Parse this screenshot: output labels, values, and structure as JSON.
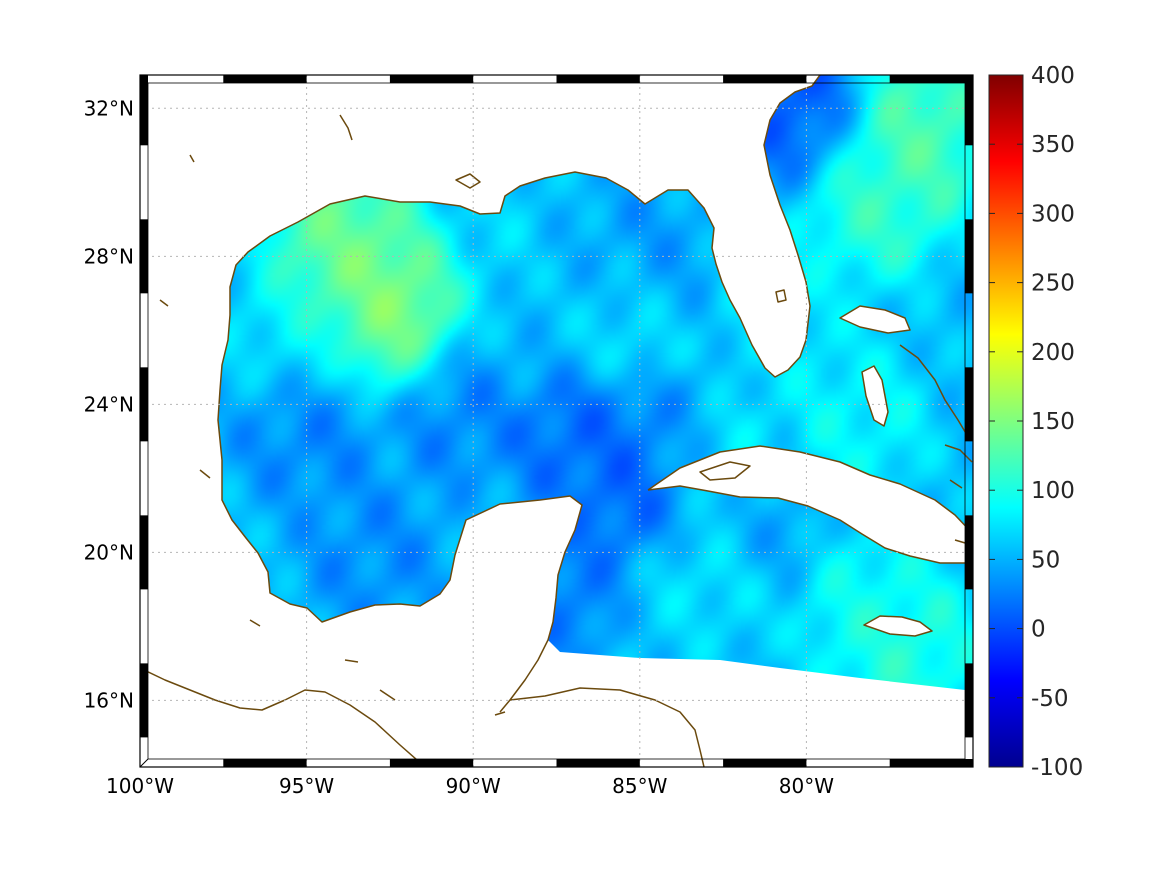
{
  "chart_data": {
    "type": "heatmap",
    "title": "",
    "xlabel": "",
    "ylabel": "",
    "map_extent": {
      "lon_range": [
        -100,
        -75
      ],
      "lat_range": [
        14.2,
        32.9
      ]
    },
    "x_ticks": [
      {
        "value": -100,
        "label": "100°W"
      },
      {
        "value": -95,
        "label": "95°W"
      },
      {
        "value": -90,
        "label": "90°W"
      },
      {
        "value": -85,
        "label": "85°W"
      },
      {
        "value": -80,
        "label": "80°W"
      }
    ],
    "y_ticks": [
      {
        "value": 16,
        "label": "16°N"
      },
      {
        "value": 20,
        "label": "20°N"
      },
      {
        "value": 24,
        "label": "24°N"
      },
      {
        "value": 28,
        "label": "28°N"
      },
      {
        "value": 32,
        "label": "32°N"
      }
    ],
    "grid": true,
    "grid_style": "dotted",
    "frame_style": "black-white alternating border",
    "colormap": "jet",
    "colorbar": {
      "min": -100,
      "max": 400,
      "ticks": [
        {
          "value": 400,
          "label": "400"
        },
        {
          "value": 350,
          "label": "350"
        },
        {
          "value": 300,
          "label": "300"
        },
        {
          "value": 250,
          "label": "250"
        },
        {
          "value": 200,
          "label": "200"
        },
        {
          "value": 150,
          "label": "150"
        },
        {
          "value": 100,
          "label": "100"
        },
        {
          "value": 50,
          "label": "50"
        },
        {
          "value": 0,
          "label": "0"
        },
        {
          "value": -50,
          "label": "-50"
        },
        {
          "value": -100,
          "label": "-100"
        }
      ]
    },
    "field_background_value": 55,
    "field_features": [
      {
        "lon": -93.5,
        "lat": 27.4,
        "value": 155
      },
      {
        "lon": -92.2,
        "lat": 26.3,
        "value": 160
      },
      {
        "lon": -93.9,
        "lat": 28.6,
        "value": 140
      },
      {
        "lon": -76.8,
        "lat": 31.5,
        "value": 135
      },
      {
        "lon": -77.5,
        "lat": 30.2,
        "value": 125
      },
      {
        "lon": -78.2,
        "lat": 29.5,
        "value": 110
      },
      {
        "lon": -95.2,
        "lat": 25.8,
        "value": 85
      },
      {
        "lon": -88.5,
        "lat": 28.2,
        "value": 80
      },
      {
        "lon": -85.5,
        "lat": 26.4,
        "value": 90
      },
      {
        "lon": -82.8,
        "lat": 22.4,
        "value": 100
      },
      {
        "lon": -78.2,
        "lat": 18.5,
        "value": 95
      },
      {
        "lon": -77.0,
        "lat": 17.3,
        "value": 110
      },
      {
        "lon": -83.3,
        "lat": 19.2,
        "value": 85
      },
      {
        "lon": -78.5,
        "lat": 23.5,
        "value": 90
      },
      {
        "lon": -80.5,
        "lat": 26.5,
        "value": 80
      },
      {
        "lon": -79.8,
        "lat": 31.7,
        "value": 0
      },
      {
        "lon": -87.0,
        "lat": 23.4,
        "value": 10
      },
      {
        "lon": -85.0,
        "lat": 21.5,
        "value": 5
      },
      {
        "lon": -84.0,
        "lat": 22.8,
        "value": 15
      },
      {
        "lon": -90.5,
        "lat": 24.0,
        "value": 25
      },
      {
        "lon": -95.0,
        "lat": 23.5,
        "value": 25
      },
      {
        "lon": -93.0,
        "lat": 20.0,
        "value": 30
      },
      {
        "lon": -87.0,
        "lat": 19.0,
        "value": 20
      },
      {
        "lon": -85.0,
        "lat": 27.5,
        "value": 30
      },
      {
        "lon": -87.5,
        "lat": 28.0,
        "value": 40
      },
      {
        "lon": -81.5,
        "lat": 21.0,
        "value": 40
      },
      {
        "lon": -84.0,
        "lat": 17.8,
        "value": 60
      },
      {
        "lon": -88.0,
        "lat": 26.0,
        "value": 55
      }
    ]
  }
}
